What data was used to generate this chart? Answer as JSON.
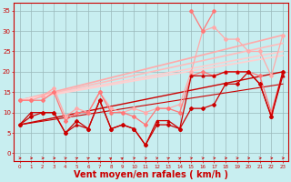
{
  "background_color": "#c8eef0",
  "grid_color": "#9ab8ba",
  "xlabel": "Vent moyen/en rafales ( km/h )",
  "xlabel_color": "#cc0000",
  "xlabel_fontsize": 7,
  "ylabel_ticks": [
    0,
    5,
    10,
    15,
    20,
    25,
    30,
    35
  ],
  "xticks": [
    0,
    1,
    2,
    3,
    4,
    5,
    6,
    7,
    8,
    9,
    10,
    11,
    12,
    13,
    14,
    15,
    16,
    17,
    18,
    19,
    20,
    21,
    22,
    23
  ],
  "xlim": [
    -0.5,
    23.5
  ],
  "ylim": [
    -2,
    37
  ],
  "tick_color": "#cc0000",
  "line_trend1": {
    "x0": 0,
    "y0": 7,
    "x1": 23,
    "y1": 20,
    "color": "#cc0000",
    "lw": 1.0
  },
  "line_trend2": {
    "x0": 0,
    "y0": 7,
    "x1": 23,
    "y1": 17,
    "color": "#cc0000",
    "lw": 0.8
  },
  "line_trend_pk1": {
    "x0": 0,
    "y0": 13,
    "x1": 23,
    "y1": 29,
    "color": "#ffaaaa",
    "lw": 1.2
  },
  "line_trend_pk2": {
    "x0": 0,
    "y0": 13,
    "x1": 23,
    "y1": 27,
    "color": "#ffbbbb",
    "lw": 1.2
  },
  "line_trend_pk3": {
    "x0": 0,
    "y0": 13,
    "x1": 23,
    "y1": 25,
    "color": "#ffcccc",
    "lw": 1.2
  },
  "line_trend_pk4": {
    "x0": 0,
    "y0": 13,
    "x1": 23,
    "y1": 24,
    "color": "#ffd0d0",
    "lw": 1.2
  },
  "series": [
    {
      "x": [
        0,
        1,
        2,
        3,
        4,
        5,
        6,
        7,
        8,
        9,
        10,
        11,
        12,
        13,
        14,
        15,
        16,
        17,
        18,
        19,
        20,
        21,
        22,
        23
      ],
      "y": [
        7,
        9,
        10,
        10,
        5,
        8,
        6,
        13,
        6,
        7,
        6,
        2,
        7,
        7,
        6,
        11,
        11,
        12,
        17,
        17,
        20,
        17,
        9,
        20
      ],
      "color": "#cc0000",
      "lw": 0.9,
      "marker": "D",
      "ms": 2.0,
      "zorder": 5
    },
    {
      "x": [
        0,
        1,
        2,
        3,
        4,
        5,
        6,
        7,
        8,
        9,
        10,
        11,
        12,
        13,
        14,
        15,
        16,
        17,
        18,
        19,
        20,
        21,
        22,
        23
      ],
      "y": [
        7,
        10,
        10,
        10,
        5,
        7,
        6,
        13,
        6,
        7,
        6,
        2,
        8,
        8,
        6,
        19,
        19,
        19,
        20,
        20,
        20,
        17,
        9,
        19
      ],
      "color": "#cc0000",
      "lw": 0.9,
      "marker": "^",
      "ms": 2.0,
      "zorder": 5
    },
    {
      "x": [
        0,
        1,
        2,
        3,
        4,
        5,
        6,
        7,
        8,
        9,
        10,
        11,
        12,
        13,
        14,
        15,
        16,
        17,
        18,
        19,
        20,
        21,
        22,
        23
      ],
      "y": [
        13,
        13,
        13,
        15,
        8,
        10,
        10,
        15,
        10,
        10,
        9,
        7,
        11,
        11,
        10,
        19,
        20,
        19,
        20,
        20,
        20,
        19,
        10,
        20
      ],
      "color": "#ff7777",
      "lw": 0.9,
      "marker": "D",
      "ms": 2.0,
      "zorder": 4
    },
    {
      "x": [
        0,
        1,
        2,
        3,
        4,
        5,
        6,
        7,
        8,
        9,
        10,
        11,
        12,
        13,
        14,
        15,
        16,
        17,
        18,
        19,
        20,
        21,
        22,
        23
      ],
      "y": [
        13,
        13,
        14,
        16,
        9,
        11,
        10,
        15,
        11,
        10,
        11,
        10,
        11,
        11,
        12,
        20,
        30,
        31,
        28,
        28,
        25,
        25,
        19,
        29
      ],
      "color": "#ffaaaa",
      "lw": 0.9,
      "marker": "D",
      "ms": 2.0,
      "zorder": 3
    },
    {
      "x": [
        15,
        16,
        17
      ],
      "y": [
        35,
        30,
        35
      ],
      "color": "#ff7777",
      "lw": 0.9,
      "marker": "D",
      "ms": 2.0,
      "zorder": 4
    }
  ],
  "wind_arrow_color": "#cc0000",
  "arrow_angles": [
    0,
    0,
    0,
    0,
    30,
    45,
    45,
    60,
    60,
    60,
    30,
    20,
    30,
    45,
    45,
    30,
    20,
    20,
    10,
    10,
    10,
    10,
    10,
    10
  ]
}
